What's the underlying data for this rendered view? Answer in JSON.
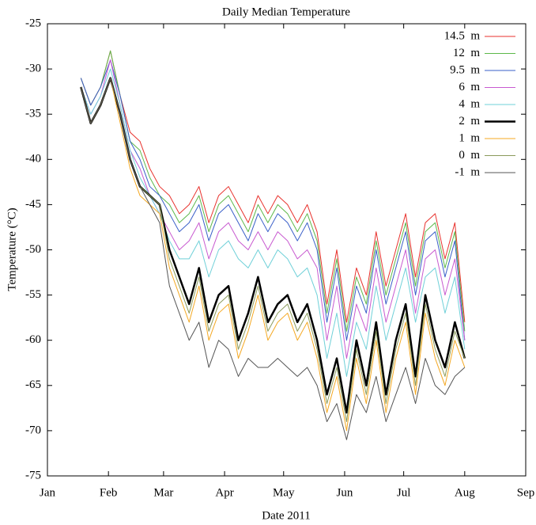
{
  "chart_data": {
    "type": "line",
    "title": "Daily Median Temperature",
    "xlabel": "Date 2011",
    "ylabel": "Temperature (°C)",
    "x": [
      17,
      22,
      27,
      32,
      37,
      42,
      47,
      52,
      57,
      62,
      67,
      72,
      77,
      82,
      87,
      92,
      97,
      102,
      107,
      112,
      117,
      122,
      127,
      132,
      137,
      142,
      147,
      152,
      157,
      162,
      167,
      172,
      177,
      182,
      187,
      192,
      197,
      202,
      207,
      212
    ],
    "xlim": [
      0,
      243
    ],
    "xticks": [
      {
        "value": 0,
        "label": "Jan"
      },
      {
        "value": 31,
        "label": "Feb"
      },
      {
        "value": 59,
        "label": "Mar"
      },
      {
        "value": 90,
        "label": "Apr"
      },
      {
        "value": 120,
        "label": "May"
      },
      {
        "value": 151,
        "label": "Jun"
      },
      {
        "value": 181,
        "label": "Jul"
      },
      {
        "value": 212,
        "label": "Aug"
      },
      {
        "value": 243,
        "label": "Sep"
      }
    ],
    "ylim": [
      -75,
      -25
    ],
    "yticks": [
      -75,
      -70,
      -65,
      -60,
      -55,
      -50,
      -45,
      -40,
      -35,
      -30,
      -25
    ],
    "legend": "upper right",
    "series": [
      {
        "name": "14.5  m",
        "color": "#e8322d",
        "values": [
          -31,
          -34,
          -32,
          -28,
          -33,
          -37,
          -38,
          -41,
          -43,
          -44,
          -46,
          -45,
          -43,
          -47,
          -44,
          -43,
          -45,
          -47,
          -44,
          -46,
          -44,
          -45,
          -47,
          -45,
          -48,
          -56,
          -50,
          -58,
          -52,
          -55,
          -48,
          -54,
          -50,
          -46,
          -53,
          -47,
          -46,
          -51,
          -47,
          -58
        ]
      },
      {
        "name": "12  m",
        "color": "#5db84a",
        "values": [
          -31,
          -34,
          -32,
          -28,
          -33,
          -38,
          -39,
          -42,
          -44,
          -45,
          -47,
          -46,
          -44,
          -48,
          -45,
          -44,
          -46,
          -48,
          -45,
          -47,
          -45,
          -46,
          -48,
          -46,
          -49,
          -57,
          -51,
          -59,
          -53,
          -56,
          -49,
          -55,
          -51,
          -47,
          -54,
          -48,
          -47,
          -52,
          -48,
          -59
        ]
      },
      {
        "name": "9.5  m",
        "color": "#3a5fc8",
        "values": [
          -31,
          -34,
          -32,
          -29,
          -33,
          -38,
          -40,
          -43,
          -44,
          -46,
          -48,
          -47,
          -45,
          -49,
          -46,
          -45,
          -47,
          -49,
          -46,
          -48,
          -46,
          -47,
          -49,
          -47,
          -50,
          -58,
          -52,
          -60,
          -54,
          -57,
          -50,
          -56,
          -52,
          -48,
          -55,
          -49,
          -48,
          -53,
          -49,
          -60
        ]
      },
      {
        "name": "6  m",
        "color": "#c85ad0",
        "values": [
          -32,
          -35,
          -33,
          -29,
          -34,
          -39,
          -41,
          -44,
          -46,
          -48,
          -50,
          -49,
          -47,
          -51,
          -48,
          -47,
          -49,
          -50,
          -48,
          -50,
          -48,
          -49,
          -51,
          -50,
          -52,
          -60,
          -54,
          -62,
          -56,
          -59,
          -52,
          -58,
          -54,
          -50,
          -57,
          -51,
          -50,
          -55,
          -51,
          -60
        ]
      },
      {
        "name": "4  m",
        "color": "#6fd0d8",
        "values": [
          -32,
          -35,
          -33,
          -30,
          -34,
          -39,
          -42,
          -44,
          -46,
          -49,
          -51,
          -51,
          -49,
          -53,
          -50,
          -49,
          -51,
          -52,
          -50,
          -52,
          -50,
          -51,
          -53,
          -52,
          -55,
          -62,
          -57,
          -64,
          -58,
          -61,
          -54,
          -60,
          -56,
          -52,
          -58,
          -53,
          -52,
          -57,
          -53,
          -61
        ]
      },
      {
        "name": "2  m",
        "color": "#000000",
        "values": [
          -32,
          -36,
          -34,
          -31,
          -35,
          -40,
          -43,
          -44,
          -45,
          -50,
          -53,
          -56,
          -52,
          -58,
          -55,
          -54,
          -60,
          -57,
          -53,
          -58,
          -56,
          -55,
          -58,
          -56,
          -60,
          -66,
          -62,
          -68,
          -60,
          -65,
          -58,
          -66,
          -60,
          -56,
          -64,
          -55,
          -60,
          -63,
          -58,
          -62
        ]
      },
      {
        "name": "1  m",
        "color": "#f4a822",
        "values": [
          -32,
          -36,
          -34,
          -31,
          -36,
          -41,
          -44,
          -45,
          -46,
          -52,
          -55,
          -58,
          -54,
          -60,
          -57,
          -56,
          -62,
          -59,
          -55,
          -60,
          -58,
          -57,
          -60,
          -58,
          -62,
          -68,
          -64,
          -70,
          -62,
          -67,
          -60,
          -68,
          -62,
          -58,
          -66,
          -57,
          -62,
          -65,
          -60,
          -63
        ]
      },
      {
        "name": "0  m",
        "color": "#8a9a5b",
        "values": [
          -32,
          -36,
          -34,
          -31,
          -35,
          -40,
          -43,
          -44,
          -45,
          -51,
          -54,
          -57,
          -53,
          -59,
          -56,
          -55,
          -61,
          -58,
          -54,
          -59,
          -57,
          -56,
          -59,
          -57,
          -61,
          -67,
          -63,
          -69,
          -61,
          -66,
          -59,
          -67,
          -61,
          -57,
          -65,
          -56,
          -61,
          -64,
          -59,
          -62
        ]
      },
      {
        "name": "-1  m",
        "color": "#555555",
        "values": [
          -32,
          -36,
          -34,
          -31,
          -35,
          -40,
          -43,
          -45,
          -47,
          -54,
          -57,
          -60,
          -58,
          -63,
          -60,
          -61,
          -64,
          -62,
          -63,
          -63,
          -62,
          -63,
          -64,
          -63,
          -65,
          -69,
          -67,
          -71,
          -66,
          -68,
          -64,
          -69,
          -66,
          -63,
          -67,
          -62,
          -65,
          -66,
          -64,
          -63
        ]
      }
    ]
  }
}
